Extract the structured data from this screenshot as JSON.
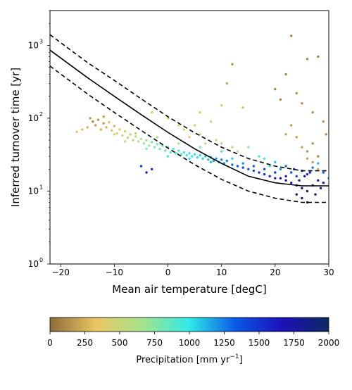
{
  "chart_data": {
    "type": "scatter",
    "title": "",
    "xlabel": "Mean air temperature [degC]",
    "ylabel": "Inferred turnover time [yr]",
    "xlim": [
      -22,
      30
    ],
    "ylim": [
      1,
      3000
    ],
    "yscale": "log",
    "grid": false,
    "x_ticks": [
      -20,
      -10,
      0,
      10,
      20,
      30
    ],
    "x_tick_labels": [
      "−20",
      "−10",
      "0",
      "10",
      "20",
      "30"
    ],
    "y_ticks": [
      1,
      10,
      100,
      1000
    ],
    "y_tick_labels": [
      "10",
      "10",
      "10",
      "10"
    ],
    "y_tick_exponents": [
      "0",
      "1",
      "2",
      "3"
    ],
    "lines": [
      {
        "style": "solid",
        "x": [
          -22,
          -15,
          -10,
          -5,
          0,
          5,
          10,
          15,
          20,
          25,
          30
        ],
        "y": [
          860,
          360,
          200,
          112,
          64,
          38,
          24,
          16,
          13,
          11.8,
          11.8
        ]
      },
      {
        "style": "dashed",
        "x": [
          -22,
          -15,
          -10,
          -5,
          0,
          5,
          10,
          15,
          20,
          25,
          30
        ],
        "y": [
          1400,
          580,
          330,
          185,
          105,
          63,
          40,
          28,
          22,
          19,
          19
        ]
      },
      {
        "style": "dashed",
        "x": [
          -22,
          -15,
          -10,
          -5,
          0,
          5,
          10,
          15,
          20,
          25,
          30
        ],
        "y": [
          520,
          215,
          120,
          68,
          39,
          23,
          14.5,
          10,
          8,
          7,
          7
        ]
      }
    ],
    "points": [
      [
        -14,
        90,
        120
      ],
      [
        -13.5,
        80,
        180
      ],
      [
        -13,
        95,
        150
      ],
      [
        -12.5,
        70,
        240
      ],
      [
        -12,
        85,
        200
      ],
      [
        -11.5,
        75,
        260
      ],
      [
        -11,
        88,
        300
      ],
      [
        -10.5,
        68,
        320
      ],
      [
        -10,
        78,
        280
      ],
      [
        -9.5,
        62,
        380
      ],
      [
        -9,
        70,
        420
      ],
      [
        -8.5,
        58,
        450
      ],
      [
        -8,
        66,
        500
      ],
      [
        -7.5,
        54,
        480
      ],
      [
        -7,
        60,
        560
      ],
      [
        -6.5,
        50,
        600
      ],
      [
        -6,
        56,
        580
      ],
      [
        -5.5,
        48,
        640
      ],
      [
        -5,
        52,
        620
      ],
      [
        -4.5,
        45,
        700
      ],
      [
        -4,
        50,
        680
      ],
      [
        -3.5,
        42,
        720
      ],
      [
        -3,
        47,
        740
      ],
      [
        -2.5,
        40,
        760
      ],
      [
        -2,
        44,
        790
      ],
      [
        -1.5,
        38,
        800
      ],
      [
        -1,
        42,
        820
      ],
      [
        -0.5,
        36,
        840
      ],
      [
        0,
        40,
        860
      ],
      [
        0.5,
        34,
        880
      ],
      [
        1,
        38,
        900
      ],
      [
        1.5,
        33,
        910
      ],
      [
        2,
        36,
        920
      ],
      [
        2.5,
        32,
        940
      ],
      [
        3,
        34,
        960
      ],
      [
        3.5,
        31,
        980
      ],
      [
        4,
        33,
        990
      ],
      [
        4.5,
        30,
        1000
      ],
      [
        5,
        32,
        1010
      ],
      [
        5.5,
        29,
        1020
      ],
      [
        6,
        31,
        1040
      ],
      [
        6.5,
        28,
        1060
      ],
      [
        7,
        30,
        1080
      ],
      [
        7.5,
        27,
        1100
      ],
      [
        8,
        29,
        1120
      ],
      [
        8.5,
        26,
        1140
      ],
      [
        9,
        28,
        1160
      ],
      [
        9.5,
        25,
        1180
      ],
      [
        10,
        27,
        1200
      ],
      [
        10.5,
        24,
        1220
      ],
      [
        11,
        26,
        1240
      ],
      [
        12,
        23,
        1280
      ],
      [
        13,
        22,
        1320
      ],
      [
        14,
        21,
        1360
      ],
      [
        15,
        20,
        1400
      ],
      [
        16,
        19,
        1440
      ],
      [
        17,
        18,
        1480
      ],
      [
        18,
        17,
        1520
      ],
      [
        19,
        16,
        1560
      ],
      [
        20,
        15,
        1600
      ],
      [
        21,
        15,
        1640
      ],
      [
        22,
        14,
        1700
      ],
      [
        23,
        13,
        1760
      ],
      [
        24,
        12,
        1820
      ],
      [
        25,
        11,
        1880
      ],
      [
        26,
        10,
        1940
      ],
      [
        27,
        12,
        1900
      ],
      [
        28,
        14,
        1800
      ],
      [
        29,
        13,
        1700
      ],
      [
        -17,
        65,
        320
      ],
      [
        -16,
        70,
        300
      ],
      [
        -15,
        75,
        260
      ],
      [
        -14.5,
        100,
        180
      ],
      [
        -12,
        105,
        220
      ],
      [
        -10,
        60,
        450
      ],
      [
        -8,
        48,
        620
      ],
      [
        -6,
        62,
        520
      ],
      [
        -4,
        38,
        760
      ],
      [
        -2,
        55,
        600
      ],
      [
        0,
        30,
        960
      ],
      [
        2,
        45,
        720
      ],
      [
        4,
        28,
        1000
      ],
      [
        6,
        40,
        760
      ],
      [
        8,
        25,
        1100
      ],
      [
        10,
        35,
        900
      ],
      [
        12,
        28,
        1050
      ],
      [
        14,
        24,
        1200
      ],
      [
        16,
        22,
        1300
      ],
      [
        18,
        20,
        1400
      ],
      [
        20,
        18,
        1500
      ],
      [
        22,
        16,
        1600
      ],
      [
        24,
        9,
        1950
      ],
      [
        25,
        8,
        1980
      ],
      [
        26,
        7,
        1990
      ],
      [
        24.5,
        14,
        1800
      ],
      [
        25.5,
        16,
        1700
      ],
      [
        26.5,
        18,
        1600
      ],
      [
        23.5,
        20,
        1500
      ],
      [
        27.5,
        9,
        1950
      ],
      [
        28.5,
        11,
        1850
      ],
      [
        -5,
        22,
        1400
      ],
      [
        -4,
        18,
        1600
      ],
      [
        -3,
        20,
        1550
      ],
      [
        5,
        80,
        500
      ],
      [
        6,
        120,
        400
      ],
      [
        8,
        90,
        450
      ],
      [
        10,
        150,
        380
      ],
      [
        11,
        300,
        200
      ],
      [
        12,
        550,
        150
      ],
      [
        14,
        140,
        300
      ],
      [
        20,
        250,
        100
      ],
      [
        21,
        180,
        120
      ],
      [
        22,
        400,
        90
      ],
      [
        23,
        1350,
        60
      ],
      [
        24,
        220,
        150
      ],
      [
        25,
        160,
        110
      ],
      [
        26,
        650,
        80
      ],
      [
        27,
        120,
        140
      ],
      [
        28,
        700,
        70
      ],
      [
        29,
        90,
        160
      ],
      [
        29.5,
        60,
        130
      ],
      [
        27,
        45,
        140
      ],
      [
        28,
        30,
        120
      ],
      [
        26,
        35,
        150
      ],
      [
        22,
        60,
        200
      ],
      [
        23,
        80,
        180
      ],
      [
        24,
        55,
        170
      ],
      [
        25,
        40,
        200
      ],
      [
        26,
        28,
        220
      ],
      [
        27,
        25,
        180
      ],
      [
        28,
        20,
        240
      ],
      [
        -3,
        120,
        400
      ],
      [
        0,
        100,
        350
      ],
      [
        2,
        80,
        450
      ],
      [
        3,
        70,
        420
      ],
      [
        4,
        55,
        380
      ],
      [
        6,
        60,
        480
      ],
      [
        7,
        45,
        560
      ],
      [
        9,
        50,
        520
      ],
      [
        10,
        45,
        600
      ],
      [
        12,
        40,
        620
      ],
      [
        13,
        35,
        650
      ],
      [
        15,
        40,
        700
      ],
      [
        17,
        30,
        900
      ],
      [
        18,
        28,
        950
      ],
      [
        19,
        22,
        1000
      ],
      [
        20,
        25,
        1100
      ],
      [
        21,
        20,
        1200
      ],
      [
        22,
        22,
        1300
      ],
      [
        23,
        18,
        1350
      ],
      [
        24,
        16,
        1400
      ],
      [
        25,
        19,
        1500
      ],
      [
        26,
        17,
        1550
      ],
      [
        27,
        21,
        1250
      ],
      [
        28,
        24,
        1100
      ],
      [
        29,
        18,
        1300
      ],
      [
        30,
        15,
        1200
      ]
    ]
  },
  "colorbar": {
    "label_text": "Precipitation [mm yr",
    "label_exponent": "−1",
    "label_suffix": "]",
    "ticks": [
      "0",
      "250",
      "500",
      "750",
      "1000",
      "1250",
      "1500",
      "1750",
      "2000"
    ],
    "min": 0,
    "max": 2000,
    "colors": [
      "#8c6c3a",
      "#eac662",
      "#a3e48c",
      "#2deae6",
      "#0a58e6",
      "#1c10b8",
      "#0c2860"
    ]
  }
}
